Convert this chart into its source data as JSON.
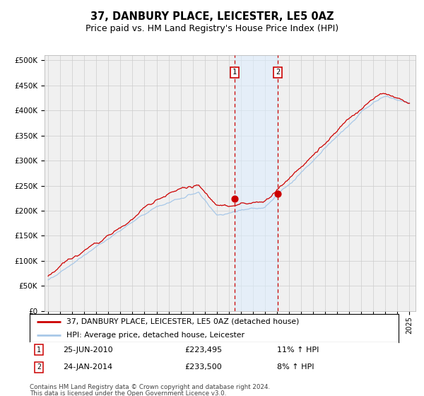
{
  "title": "37, DANBURY PLACE, LEICESTER, LE5 0AZ",
  "subtitle": "Price paid vs. HM Land Registry's House Price Index (HPI)",
  "ylim": [
    0,
    510000
  ],
  "yticks": [
    0,
    50000,
    100000,
    150000,
    200000,
    250000,
    300000,
    350000,
    400000,
    450000,
    500000
  ],
  "ytick_labels": [
    "£0",
    "£50K",
    "£100K",
    "£150K",
    "£200K",
    "£250K",
    "£300K",
    "£350K",
    "£400K",
    "£450K",
    "£500K"
  ],
  "hpi_color": "#a8c8e8",
  "price_color": "#cc0000",
  "background_color": "#ffffff",
  "plot_bg_color": "#f0f0f0",
  "grid_color": "#cccccc",
  "sale1_date": 2010.49,
  "sale1_price": 223495,
  "sale2_date": 2014.07,
  "sale2_price": 233500,
  "shade_color": "#ddeeff",
  "legend_line1": "37, DANBURY PLACE, LEICESTER, LE5 0AZ (detached house)",
  "legend_line2": "HPI: Average price, detached house, Leicester",
  "footnote1": "Contains HM Land Registry data © Crown copyright and database right 2024.",
  "footnote2": "This data is licensed under the Open Government Licence v3.0.",
  "title_fontsize": 10.5,
  "subtitle_fontsize": 9,
  "tick_fontsize": 7.5
}
